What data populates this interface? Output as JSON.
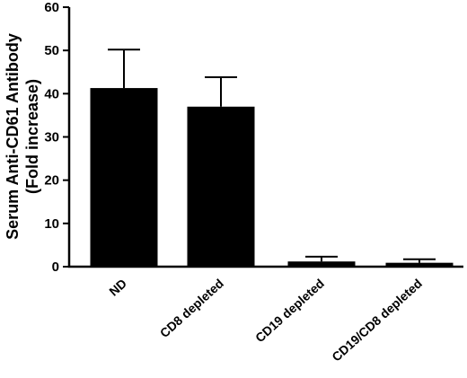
{
  "chart_data": {
    "type": "bar",
    "title": "",
    "xlabel": "",
    "ylabel_line1": "Serum Anti-CD61 Antibody",
    "ylabel_line2": "(Fold increase)",
    "categories": [
      "ND",
      "CD8 depleted",
      "CD19 depleted",
      "CD19/CD8 depleted"
    ],
    "values": [
      41.3,
      37.0,
      1.2,
      0.9
    ],
    "error_upper": [
      50.2,
      43.8,
      2.3,
      1.7
    ],
    "ylim": [
      0,
      60
    ],
    "yticks": [
      0,
      10,
      20,
      30,
      40,
      50,
      60
    ],
    "grid": false,
    "bar_color": "#000000"
  }
}
